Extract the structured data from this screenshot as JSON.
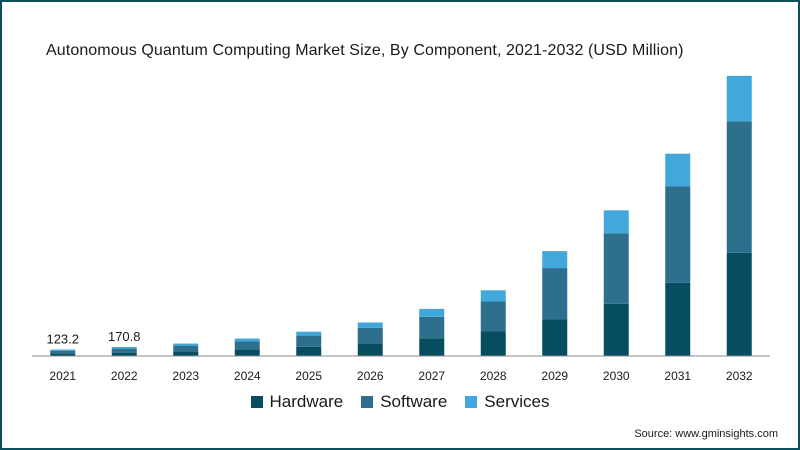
{
  "chart_data": {
    "type": "bar",
    "stacked": true,
    "title": "Autonomous Quantum Computing Market Size, By Component, 2021-2032 (USD Million)",
    "xlabel": "",
    "ylabel": "",
    "categories": [
      "2021",
      "2022",
      "2023",
      "2024",
      "2025",
      "2026",
      "2027",
      "2028",
      "2029",
      "2030",
      "2031",
      "2032"
    ],
    "series": [
      {
        "name": "Hardware",
        "color": "#064d5f",
        "values": [
          45,
          63,
          88,
          125,
          175,
          240,
          335,
          470,
          690,
          985,
          1380,
          1950
        ]
      },
      {
        "name": "Software",
        "color": "#2e6f8e",
        "values": [
          55,
          77,
          108,
          150,
          210,
          290,
          405,
          560,
          970,
          1330,
          1820,
          2480
        ]
      },
      {
        "name": "Services",
        "color": "#42a8dc",
        "values": [
          23.2,
          30.8,
          39,
          54,
          74,
          103,
          150,
          210,
          320,
          435,
          620,
          860
        ]
      }
    ],
    "data_labels": [
      {
        "category": "2021",
        "text": "123.2"
      },
      {
        "category": "2022",
        "text": "170.8"
      }
    ],
    "ylim": [
      0,
      5400
    ],
    "grid": false,
    "legend_position": "bottom",
    "source": "Source: www.gminsights.com"
  }
}
